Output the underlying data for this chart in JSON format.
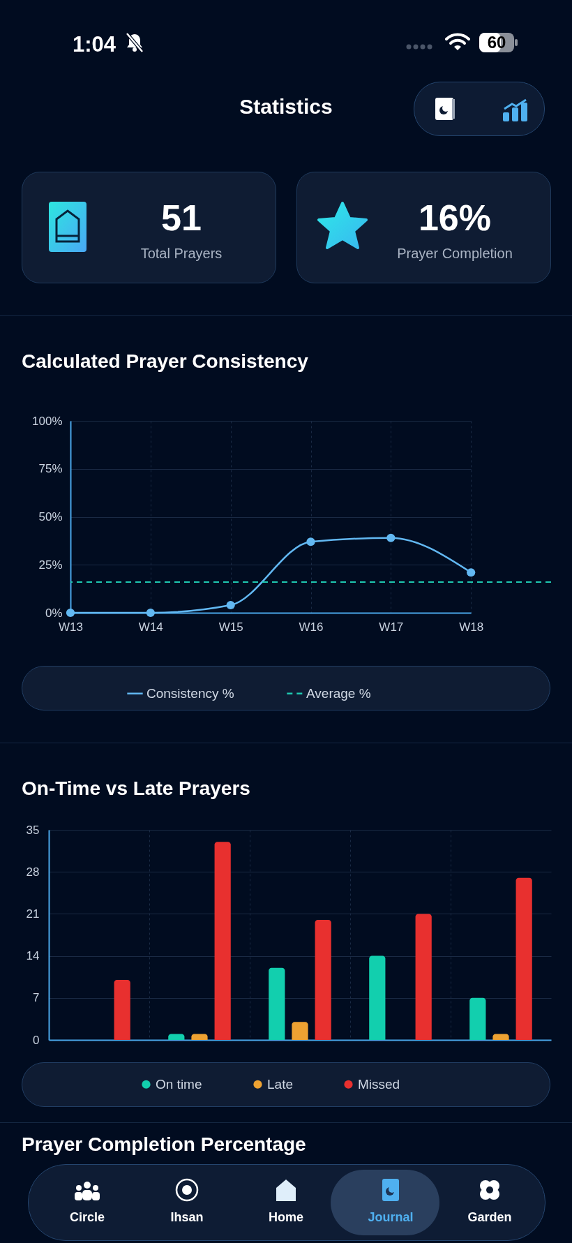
{
  "chart_data": [
    {
      "type": "other",
      "title": "Statistics",
      "annotations": [
        "1:04",
        "60",
        "51",
        "Total Prayers",
        "16%",
        "Prayer Completion"
      ]
    },
    {
      "type": "line",
      "title": "Calculated Prayer Consistency",
      "categories": [
        "W13",
        "W14",
        "W15",
        "W16",
        "W17",
        "W18"
      ],
      "series": [
        {
          "name": "Consistency %",
          "color": "#62b8f2",
          "values": [
            0,
            0,
            4,
            37,
            39,
            21
          ]
        }
      ],
      "ylim": [
        0,
        100
      ],
      "yticks": [
        {
          "value": 0,
          "label": "0%"
        },
        {
          "value": 25,
          "label": "25%"
        },
        {
          "value": 50,
          "label": "50%"
        },
        {
          "value": 75,
          "label": "75%"
        },
        {
          "value": 100,
          "label": "100%"
        }
      ],
      "ref_lines": [
        {
          "axis": "y",
          "value": 16,
          "label": "Average %",
          "color": "#1ec8b0",
          "line_style": "dashed"
        }
      ],
      "grid": true,
      "legend": "bottom",
      "marker": "circle"
    },
    {
      "type": "bar",
      "title": "On-Time vs Late Prayers",
      "categories": [
        null,
        null,
        null,
        null,
        null
      ],
      "series": [
        {
          "name": "On time",
          "color": "#12cfae",
          "values": [
            0,
            1,
            12,
            14,
            7
          ]
        },
        {
          "name": "Late",
          "color": "#eea232",
          "values": [
            0,
            1,
            3,
            0,
            1
          ]
        },
        {
          "name": "Missed",
          "color": "#e8302f",
          "values": [
            10,
            33,
            20,
            21,
            27
          ]
        }
      ],
      "ylim": [
        0,
        35
      ],
      "yticks": [
        0,
        7,
        14,
        21,
        28,
        35
      ],
      "grid": true,
      "legend": "bottom",
      "tick_labels": "y"
    },
    {
      "type": "other",
      "title": "Prayer Completion Percentage",
      "annotations": [
        "Circle",
        "Ihsan",
        "Home",
        "Journal",
        "Garden"
      ]
    }
  ]
}
